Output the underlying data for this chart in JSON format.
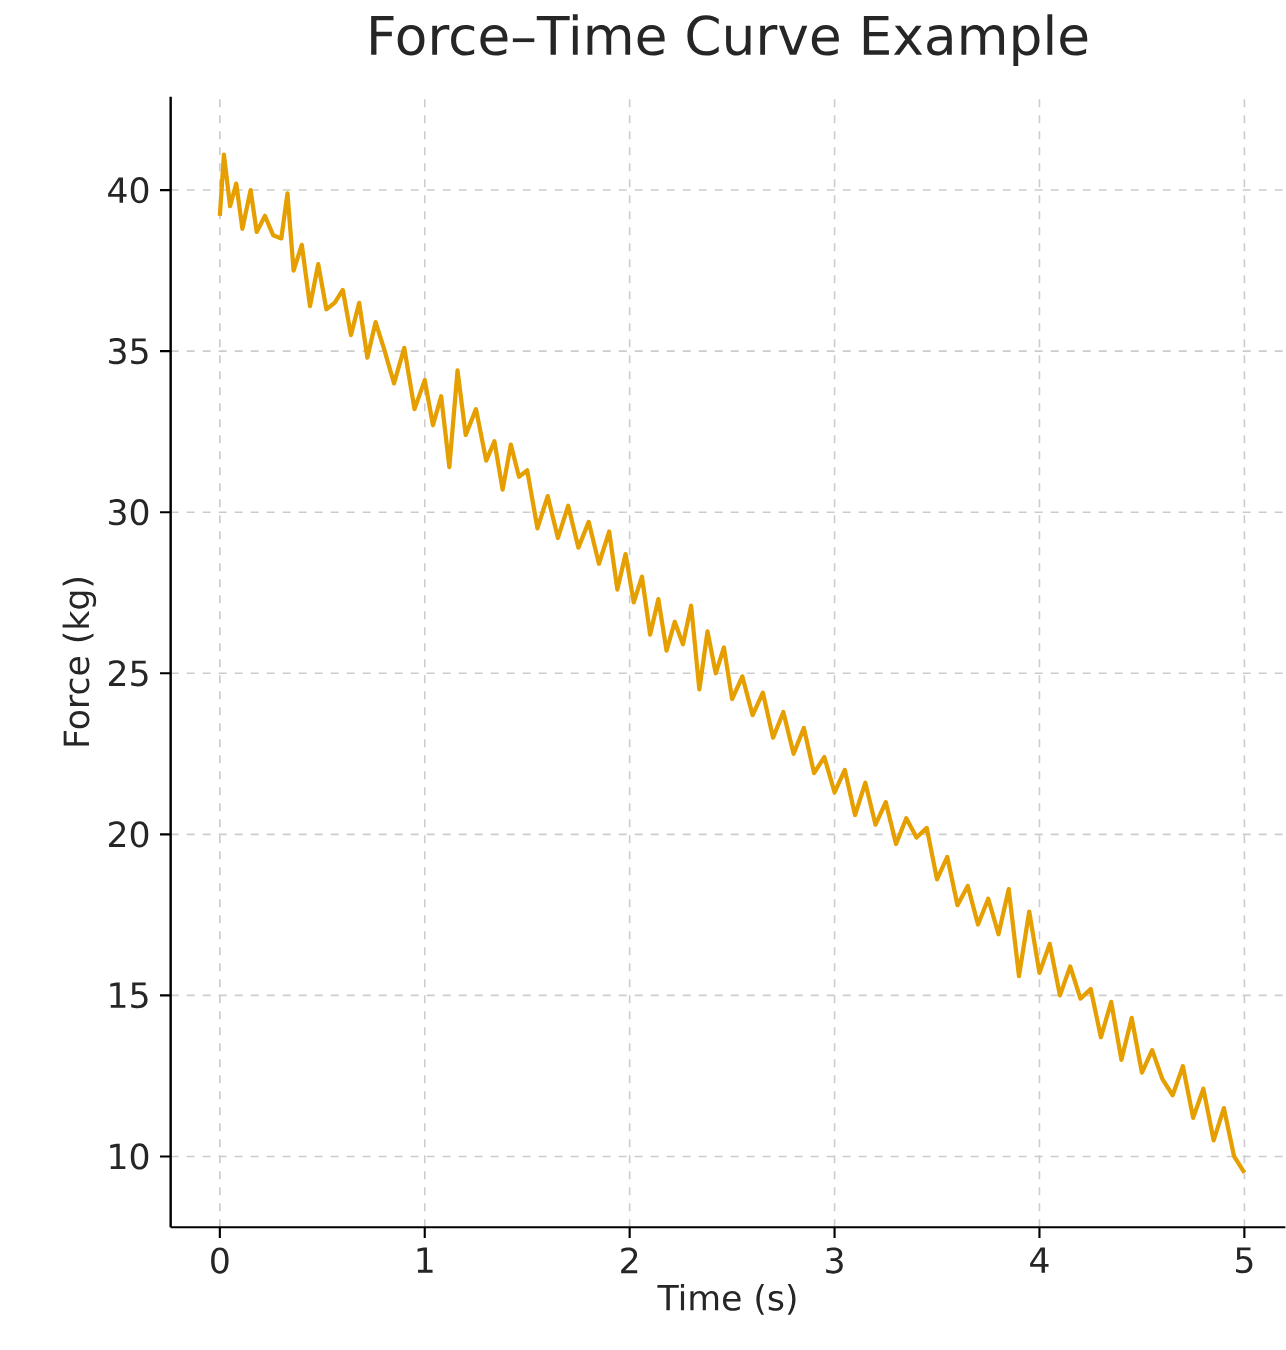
{
  "chart_data": {
    "type": "line",
    "title": "Force–Time Curve Example",
    "xlabel": "Time (s)",
    "ylabel": "Force (kg)",
    "x": [
      0,
      0.02,
      0.05,
      0.08,
      0.11,
      0.15,
      0.18,
      0.22,
      0.26,
      0.3,
      0.33,
      0.36,
      0.4,
      0.44,
      0.48,
      0.52,
      0.56,
      0.6,
      0.64,
      0.68,
      0.72,
      0.76,
      0.8,
      0.85,
      0.9,
      0.95,
      1.0,
      1.04,
      1.08,
      1.12,
      1.16,
      1.2,
      1.25,
      1.3,
      1.34,
      1.38,
      1.42,
      1.46,
      1.5,
      1.55,
      1.6,
      1.65,
      1.7,
      1.75,
      1.8,
      1.85,
      1.9,
      1.94,
      1.98,
      2.02,
      2.06,
      2.1,
      2.14,
      2.18,
      2.22,
      2.26,
      2.3,
      2.34,
      2.38,
      2.42,
      2.46,
      2.5,
      2.55,
      2.6,
      2.65,
      2.7,
      2.75,
      2.8,
      2.85,
      2.9,
      2.95,
      3.0,
      3.05,
      3.1,
      3.15,
      3.2,
      3.25,
      3.3,
      3.35,
      3.4,
      3.45,
      3.5,
      3.55,
      3.6,
      3.65,
      3.7,
      3.75,
      3.8,
      3.85,
      3.9,
      3.95,
      4.0,
      4.05,
      4.1,
      4.15,
      4.2,
      4.25,
      4.3,
      4.35,
      4.4,
      4.45,
      4.5,
      4.55,
      4.6,
      4.65,
      4.7,
      4.75,
      4.8,
      4.85,
      4.9,
      4.95,
      5.0
    ],
    "series": [
      {
        "color": "#e69f00",
        "values": [
          39.2,
          41.1,
          39.5,
          40.2,
          38.8,
          40.0,
          38.7,
          39.2,
          38.6,
          38.5,
          39.9,
          37.5,
          38.3,
          36.4,
          37.7,
          36.3,
          36.5,
          36.9,
          35.5,
          36.5,
          34.8,
          35.9,
          35.1,
          34.0,
          35.1,
          33.2,
          34.1,
          32.7,
          33.6,
          31.4,
          34.4,
          32.4,
          33.2,
          31.6,
          32.2,
          30.7,
          32.1,
          31.1,
          31.3,
          29.5,
          30.5,
          29.2,
          30.2,
          28.9,
          29.7,
          28.4,
          29.4,
          27.6,
          28.7,
          27.2,
          28.0,
          26.2,
          27.3,
          25.7,
          26.6,
          25.9,
          27.1,
          24.5,
          26.3,
          25.0,
          25.8,
          24.2,
          24.9,
          23.7,
          24.4,
          23.0,
          23.8,
          22.5,
          23.3,
          21.9,
          22.4,
          21.3,
          22.0,
          20.6,
          21.6,
          20.3,
          21.0,
          19.7,
          20.5,
          19.9,
          20.2,
          18.6,
          19.3,
          17.8,
          18.4,
          17.2,
          18.0,
          16.9,
          18.3,
          15.6,
          17.6,
          15.7,
          16.6,
          15.0,
          15.9,
          14.9,
          15.2,
          13.7,
          14.8,
          13.0,
          14.3,
          12.6,
          13.3,
          12.4,
          11.9,
          12.8,
          11.2,
          12.1,
          10.5,
          11.5,
          10.0,
          9.5
        ]
      }
    ],
    "xlim": [
      -0.24,
      5.2
    ],
    "ylim": [
      7.8,
      42.9
    ],
    "xticks": [
      0,
      1,
      2,
      3,
      4,
      5
    ],
    "yticks": [
      10,
      15,
      20,
      25,
      30,
      35,
      40
    ],
    "grid": true,
    "marker": "none",
    "line_style": "solid"
  }
}
